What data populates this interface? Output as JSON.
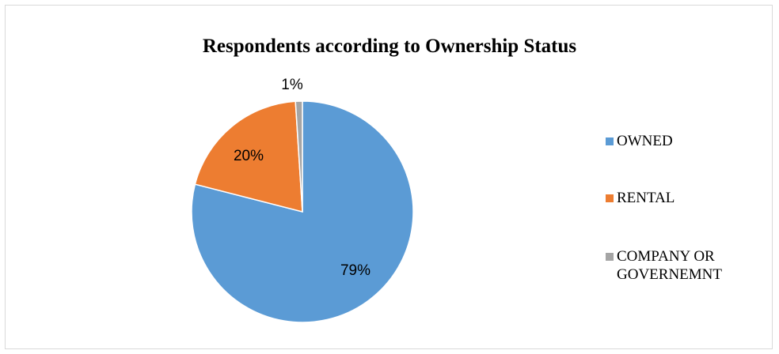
{
  "chart_data": {
    "type": "pie",
    "title": "Respondents according to Ownership Status",
    "categories": [
      "OWNED",
      "RENTAL",
      "COMPANY OR GOVERNEMNT"
    ],
    "values": [
      79,
      20,
      1
    ],
    "data_labels": [
      "79%",
      "20%",
      "1%"
    ],
    "colors": [
      "#5b9bd5",
      "#ed7d31",
      "#a5a5a5"
    ],
    "legend": {
      "placement": "right",
      "entries": [
        {
          "label_lines": [
            "OWNED"
          ]
        },
        {
          "label_lines": [
            "RENTAL"
          ]
        },
        {
          "label_lines": [
            "COMPANY OR",
            "GOVERNEMNT"
          ]
        }
      ]
    }
  }
}
